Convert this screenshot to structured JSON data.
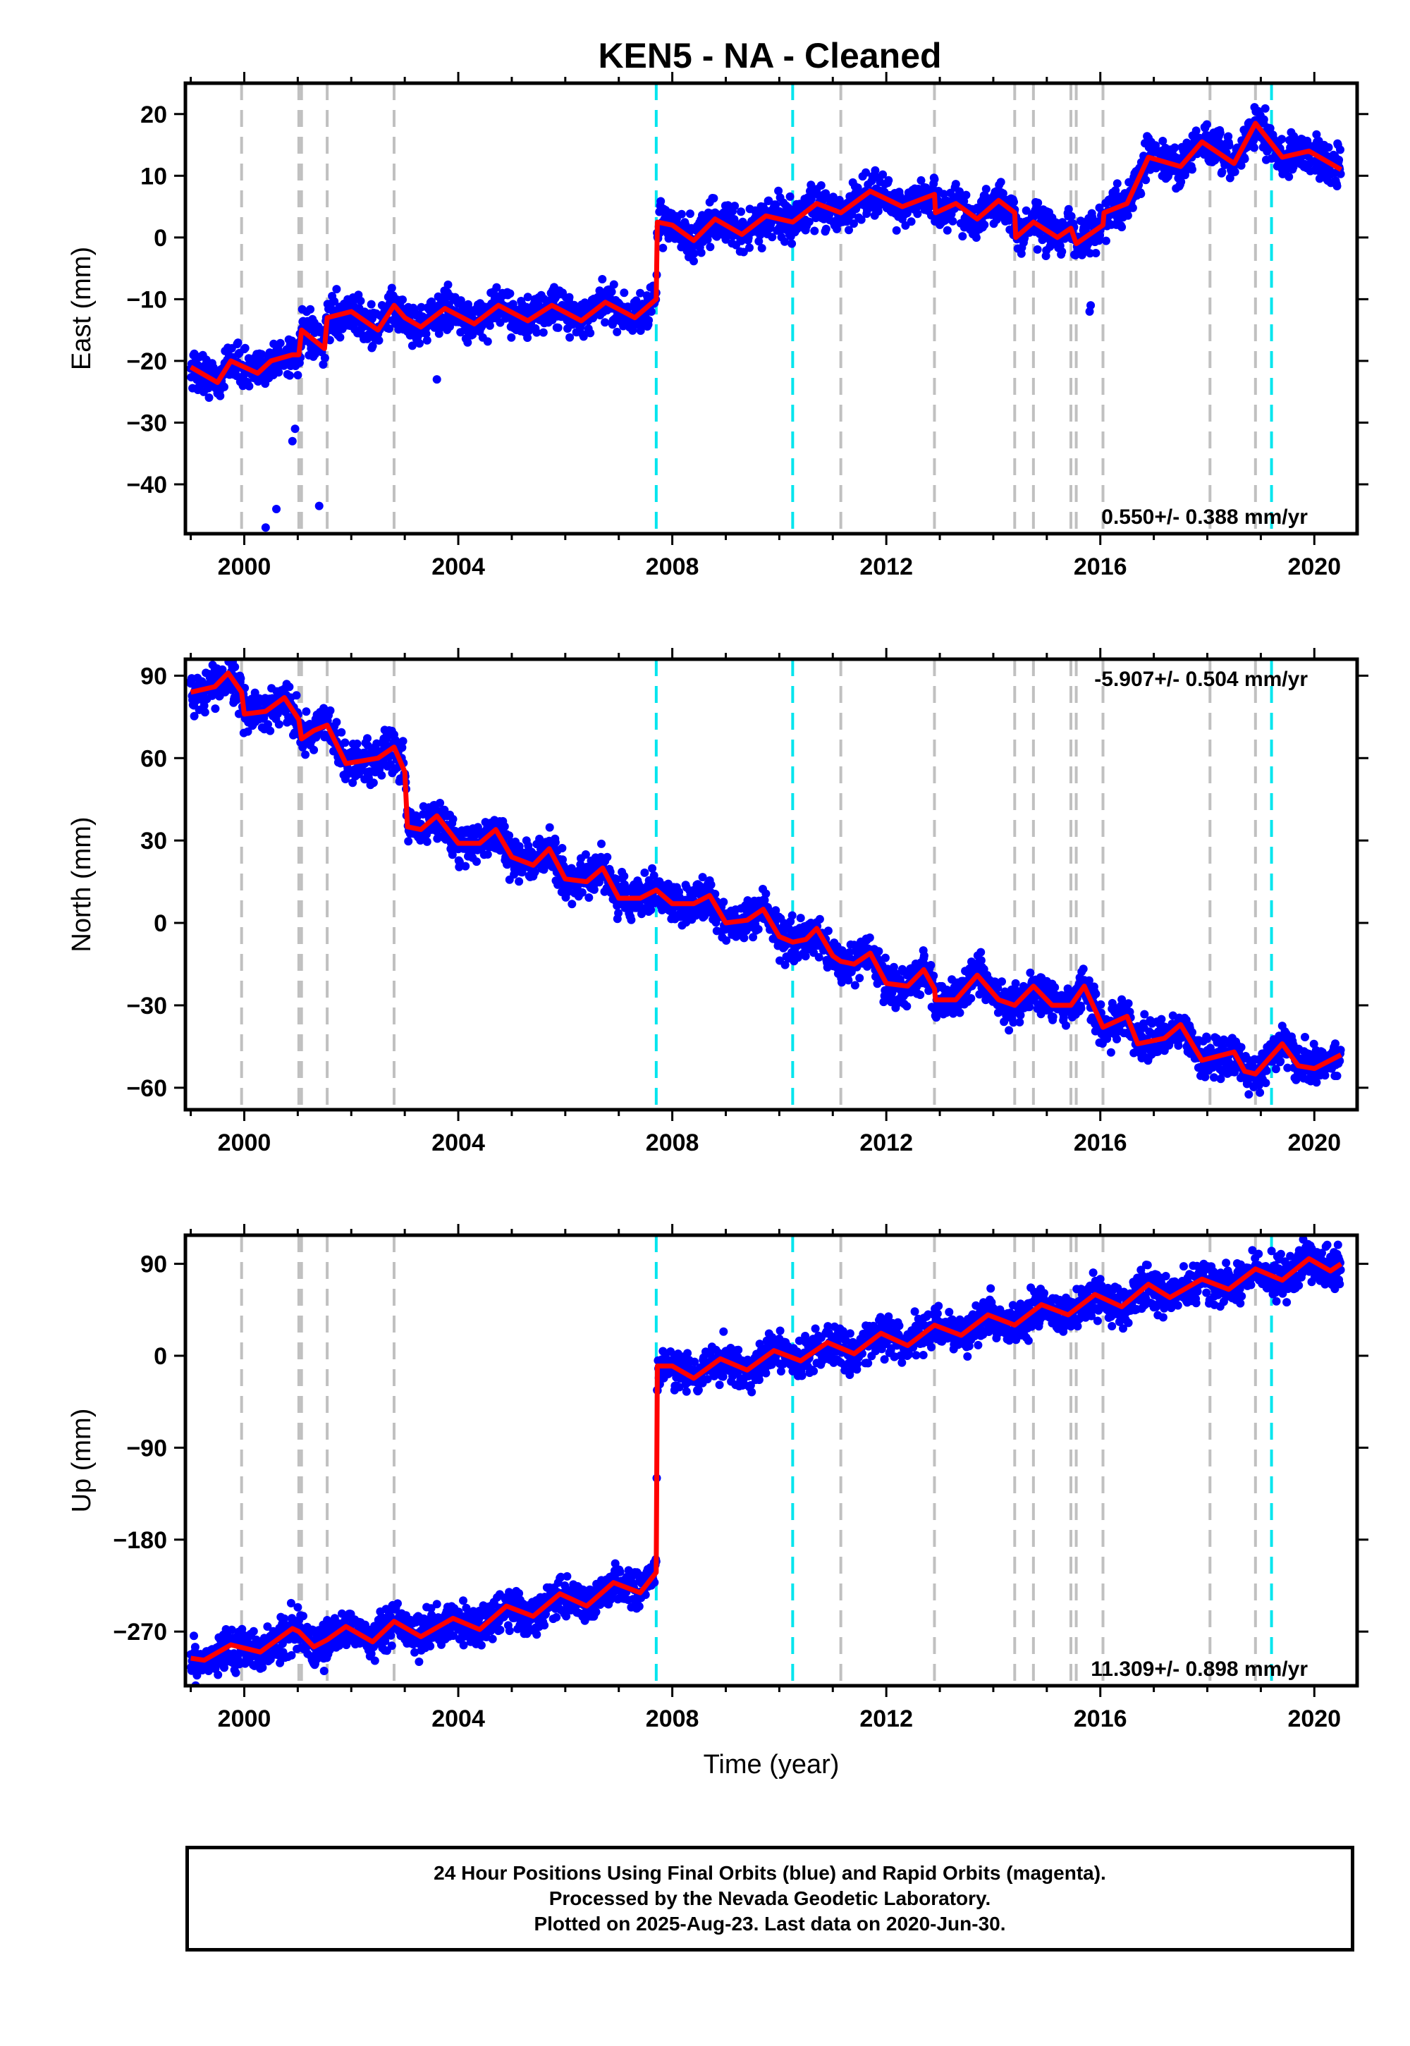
{
  "title": "KEN5  - NA - Cleaned",
  "colors": {
    "points": "#0000ff",
    "model": "#ff0000",
    "gray_line": "#c0c0c0",
    "cyan_line": "#00e5ee",
    "frame": "#000000"
  },
  "footer": {
    "line1": "24 Hour Positions Using Final Orbits (blue) and Rapid Orbits (magenta).",
    "line2": "Processed by the Nevada Geodetic Laboratory.",
    "line3": "Plotted on 2025-Aug-23. Last data on 2020-Jun-30."
  },
  "chart_data": {
    "type": "scatter",
    "x_range": [
      1998.9,
      2020.8
    ],
    "x_ticks": [
      2000,
      2004,
      2008,
      2012,
      2016,
      2020
    ],
    "x_tick_labels": [
      "2000",
      "2004",
      "2008",
      "2012",
      "2016",
      "2020"
    ],
    "xlabel": "Time (year)",
    "data_start": 1999.0,
    "data_end": 2020.5,
    "gray_event_lines": [
      1999.95,
      2001.02,
      2001.07,
      2001.55,
      2002.8,
      2011.15,
      2012.9,
      2014.4,
      2014.75,
      2015.45,
      2015.55,
      2016.05,
      2018.05,
      2018.9
    ],
    "cyan_event_lines": [
      2007.7,
      2010.25,
      2019.2
    ],
    "panels": [
      {
        "name": "East",
        "ylabel": "East (mm)",
        "ylim": [
          -48,
          25
        ],
        "yticks": [
          20,
          10,
          0,
          -10,
          -20,
          -30,
          -40
        ],
        "ytick_labels": [
          "20",
          "10",
          "0",
          "−10",
          "−20",
          "−30",
          "−40"
        ],
        "rate_text": "0.550+/- 0.388 mm/yr",
        "rate_position": "bottom-right",
        "model": [
          [
            1999.0,
            -21
          ],
          [
            1999.5,
            -23.5
          ],
          [
            1999.75,
            -20
          ],
          [
            2000.25,
            -22
          ],
          [
            2000.5,
            -20
          ],
          [
            2000.9,
            -19
          ],
          [
            2001.02,
            -19
          ],
          [
            2001.07,
            -15
          ],
          [
            2001.5,
            -18
          ],
          [
            2001.55,
            -13
          ],
          [
            2002.0,
            -12
          ],
          [
            2002.5,
            -15
          ],
          [
            2002.8,
            -11
          ],
          [
            2003.0,
            -13
          ],
          [
            2003.3,
            -14.5
          ],
          [
            2003.75,
            -11.5
          ],
          [
            2004.3,
            -14
          ],
          [
            2004.75,
            -11
          ],
          [
            2005.3,
            -13.5
          ],
          [
            2005.75,
            -11
          ],
          [
            2006.3,
            -13.5
          ],
          [
            2006.75,
            -10.5
          ],
          [
            2007.3,
            -13
          ],
          [
            2007.7,
            -10
          ],
          [
            2007.72,
            2.5
          ],
          [
            2008.0,
            2
          ],
          [
            2008.4,
            -0.5
          ],
          [
            2008.8,
            3
          ],
          [
            2009.3,
            0.5
          ],
          [
            2009.75,
            3.5
          ],
          [
            2010.25,
            2.5
          ],
          [
            2010.7,
            5.5
          ],
          [
            2011.15,
            4
          ],
          [
            2011.7,
            7.5
          ],
          [
            2012.3,
            5
          ],
          [
            2012.9,
            7
          ],
          [
            2012.92,
            4
          ],
          [
            2013.3,
            5.5
          ],
          [
            2013.7,
            3
          ],
          [
            2014.1,
            6
          ],
          [
            2014.4,
            4
          ],
          [
            2014.42,
            0
          ],
          [
            2014.75,
            2.5
          ],
          [
            2015.2,
            0
          ],
          [
            2015.45,
            1.5
          ],
          [
            2015.55,
            -1
          ],
          [
            2016.05,
            2
          ],
          [
            2016.07,
            4
          ],
          [
            2016.5,
            5.5
          ],
          [
            2016.9,
            13
          ],
          [
            2017.5,
            11.5
          ],
          [
            2017.9,
            15.5
          ],
          [
            2018.5,
            12
          ],
          [
            2018.9,
            18.5
          ],
          [
            2019.4,
            13
          ],
          [
            2019.9,
            14
          ],
          [
            2020.5,
            11
          ]
        ],
        "outliers": [
          [
            2000.4,
            -47
          ],
          [
            2000.6,
            -44
          ],
          [
            2000.9,
            -33
          ],
          [
            2000.95,
            -31
          ],
          [
            2001.4,
            -43.5
          ],
          [
            2003.6,
            -23
          ],
          [
            2015.8,
            -12
          ],
          [
            2015.82,
            -11
          ]
        ]
      },
      {
        "name": "North",
        "ylabel": "North (mm)",
        "ylim": [
          -68,
          96
        ],
        "yticks": [
          90,
          60,
          30,
          0,
          -30,
          -60
        ],
        "ytick_labels": [
          "90",
          "60",
          "30",
          "0",
          "−30",
          "−60"
        ],
        "rate_text": "-5.907+/- 0.504 mm/yr",
        "rate_position": "top-right",
        "model": [
          [
            1999.0,
            84
          ],
          [
            1999.45,
            86
          ],
          [
            1999.7,
            91
          ],
          [
            1999.95,
            84
          ],
          [
            2000.0,
            76
          ],
          [
            2000.4,
            77
          ],
          [
            2000.75,
            82
          ],
          [
            2001.02,
            74
          ],
          [
            2001.07,
            67
          ],
          [
            2001.3,
            70
          ],
          [
            2001.55,
            72
          ],
          [
            2001.9,
            58
          ],
          [
            2002.5,
            60
          ],
          [
            2002.8,
            64
          ],
          [
            2003.0,
            55
          ],
          [
            2003.05,
            35
          ],
          [
            2003.3,
            34
          ],
          [
            2003.6,
            39
          ],
          [
            2004.0,
            29
          ],
          [
            2004.4,
            29
          ],
          [
            2004.7,
            34
          ],
          [
            2005.0,
            24
          ],
          [
            2005.4,
            21
          ],
          [
            2005.7,
            27
          ],
          [
            2006.0,
            16
          ],
          [
            2006.4,
            15
          ],
          [
            2006.7,
            20
          ],
          [
            2007.0,
            9
          ],
          [
            2007.4,
            9
          ],
          [
            2007.7,
            12
          ],
          [
            2008.0,
            7
          ],
          [
            2008.4,
            7
          ],
          [
            2008.7,
            10
          ],
          [
            2009.0,
            0
          ],
          [
            2009.4,
            1
          ],
          [
            2009.7,
            5
          ],
          [
            2010.0,
            -5
          ],
          [
            2010.25,
            -7
          ],
          [
            2010.5,
            -6
          ],
          [
            2010.7,
            -2
          ],
          [
            2011.0,
            -12
          ],
          [
            2011.15,
            -14
          ],
          [
            2011.4,
            -15
          ],
          [
            2011.7,
            -11
          ],
          [
            2012.0,
            -22
          ],
          [
            2012.4,
            -23
          ],
          [
            2012.7,
            -17
          ],
          [
            2012.9,
            -24
          ],
          [
            2012.92,
            -28
          ],
          [
            2013.3,
            -28
          ],
          [
            2013.7,
            -19
          ],
          [
            2014.1,
            -28
          ],
          [
            2014.4,
            -30
          ],
          [
            2014.75,
            -23
          ],
          [
            2015.1,
            -30
          ],
          [
            2015.45,
            -30
          ],
          [
            2015.7,
            -23
          ],
          [
            2016.05,
            -38
          ],
          [
            2016.5,
            -34
          ],
          [
            2016.7,
            -44
          ],
          [
            2017.2,
            -42
          ],
          [
            2017.5,
            -37
          ],
          [
            2017.9,
            -50
          ],
          [
            2018.5,
            -47
          ],
          [
            2018.7,
            -54
          ],
          [
            2018.9,
            -55
          ],
          [
            2019.4,
            -44
          ],
          [
            2019.7,
            -52
          ],
          [
            2020.0,
            -53
          ],
          [
            2020.5,
            -48
          ]
        ],
        "outliers": []
      },
      {
        "name": "Up",
        "ylabel": "Up (mm)",
        "ylim": [
          -323,
          118
        ],
        "yticks": [
          90,
          0,
          -90,
          -180,
          -270
        ],
        "ytick_labels": [
          "90",
          "0",
          "−90",
          "−180",
          "−270"
        ],
        "rate_text": "11.309+/- 0.898 mm/yr",
        "rate_position": "bottom-right",
        "model": [
          [
            1999.0,
            -296
          ],
          [
            1999.25,
            -298
          ],
          [
            1999.75,
            -283
          ],
          [
            2000.3,
            -290
          ],
          [
            2000.9,
            -267
          ],
          [
            2001.02,
            -270
          ],
          [
            2001.3,
            -285
          ],
          [
            2001.55,
            -278
          ],
          [
            2001.9,
            -265
          ],
          [
            2002.4,
            -280
          ],
          [
            2002.8,
            -260
          ],
          [
            2003.3,
            -275
          ],
          [
            2003.9,
            -257
          ],
          [
            2004.4,
            -268
          ],
          [
            2004.9,
            -245
          ],
          [
            2005.4,
            -255
          ],
          [
            2005.9,
            -233
          ],
          [
            2006.4,
            -245
          ],
          [
            2006.9,
            -222
          ],
          [
            2007.4,
            -232
          ],
          [
            2007.7,
            -212
          ],
          [
            2007.72,
            -10
          ],
          [
            2008.0,
            -10
          ],
          [
            2008.4,
            -22
          ],
          [
            2008.9,
            -3
          ],
          [
            2009.4,
            -14
          ],
          [
            2009.9,
            5
          ],
          [
            2010.4,
            -5
          ],
          [
            2010.9,
            13
          ],
          [
            2011.4,
            2
          ],
          [
            2011.9,
            22
          ],
          [
            2012.4,
            10
          ],
          [
            2012.9,
            30
          ],
          [
            2013.4,
            20
          ],
          [
            2013.9,
            40
          ],
          [
            2014.4,
            30
          ],
          [
            2014.9,
            50
          ],
          [
            2015.4,
            40
          ],
          [
            2015.9,
            60
          ],
          [
            2016.4,
            48
          ],
          [
            2016.9,
            70
          ],
          [
            2017.3,
            57
          ],
          [
            2017.9,
            75
          ],
          [
            2018.4,
            65
          ],
          [
            2018.9,
            85
          ],
          [
            2019.4,
            74
          ],
          [
            2019.9,
            95
          ],
          [
            2020.3,
            83
          ],
          [
            2020.5,
            90
          ]
        ],
        "outliers": [
          [
            2019.9,
            103
          ],
          [
            2019.95,
            105
          ]
        ]
      }
    ]
  }
}
